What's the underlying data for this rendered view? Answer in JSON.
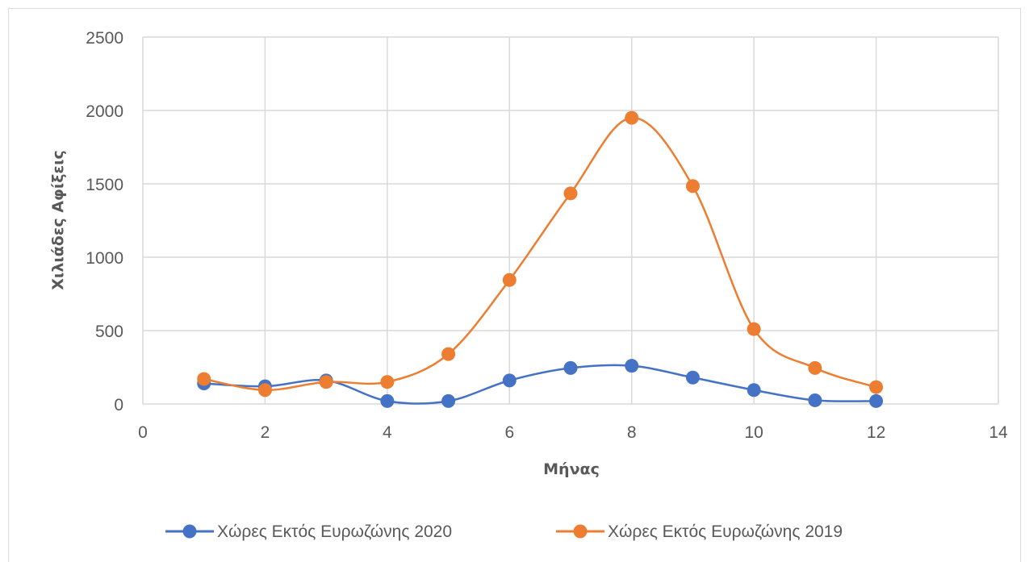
{
  "chart_data": {
    "type": "line",
    "smooth": true,
    "xlabel": "Μήνας",
    "ylabel": "Χιλιάδες Αφίξεις",
    "xlim": [
      0,
      14
    ],
    "ylim": [
      0,
      2500
    ],
    "xticks": [
      0,
      2,
      4,
      6,
      8,
      10,
      12,
      14
    ],
    "yticks": [
      0,
      500,
      1000,
      1500,
      2000,
      2500
    ],
    "grid": true,
    "legend_position": "bottom",
    "series": [
      {
        "name": "Χώρες Εκτός Ευρωζώνης 2020",
        "color": "#4472c4",
        "x": [
          1,
          2,
          3,
          4,
          5,
          6,
          7,
          8,
          9,
          10,
          11,
          12
        ],
        "values": [
          140,
          120,
          160,
          20,
          20,
          160,
          245,
          260,
          180,
          95,
          25,
          20
        ]
      },
      {
        "name": "Χώρες Εκτός Ευρωζώνης 2019",
        "color": "#ed7d31",
        "x": [
          1,
          2,
          3,
          4,
          5,
          6,
          7,
          8,
          9,
          10,
          11,
          12
        ],
        "values": [
          170,
          95,
          150,
          150,
          340,
          845,
          1435,
          1950,
          1485,
          510,
          245,
          115
        ]
      }
    ]
  }
}
